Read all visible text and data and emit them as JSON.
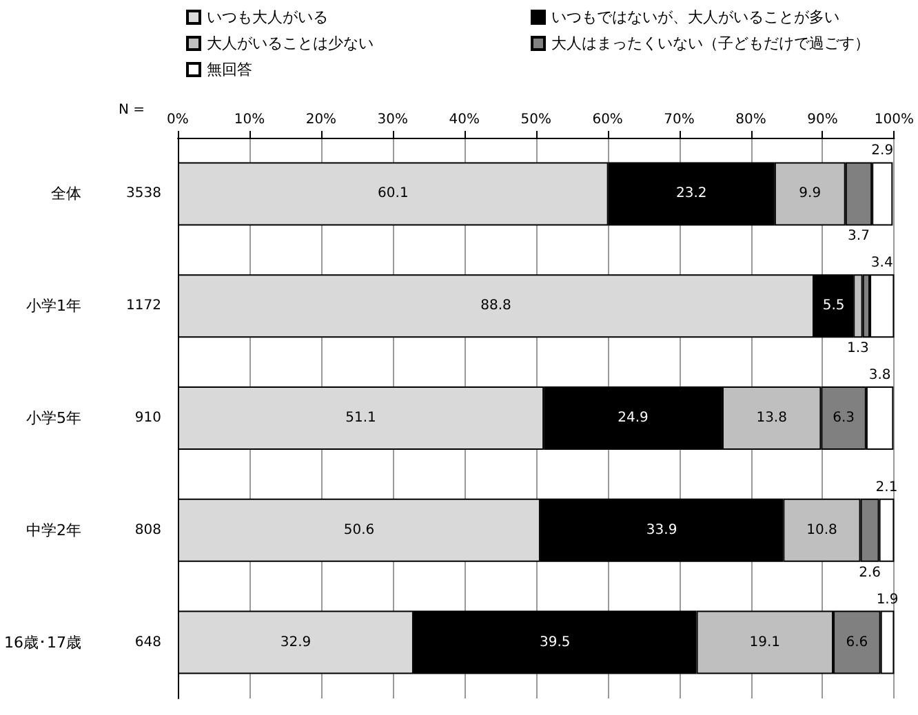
{
  "chart_data": {
    "type": "bar",
    "orientation": "horizontal",
    "stacked": true,
    "categories": [
      "全体",
      "小学1年",
      "小学5年",
      "中学2年",
      "16歳･17歳"
    ],
    "series": [
      {
        "name": "いつも大人がいる",
        "color": "#d9d9d9",
        "values": [
          60.1,
          88.8,
          51.1,
          50.6,
          32.9
        ]
      },
      {
        "name": "いつもではないが、大人がいることが多い",
        "color": "#000000",
        "values": [
          23.2,
          5.5,
          24.9,
          33.9,
          39.5
        ]
      },
      {
        "name": "大人がいることは少ない",
        "color": "#bfbfbf",
        "values": [
          9.9,
          1.3,
          13.8,
          10.8,
          19.1
        ]
      },
      {
        "name": "大人はまったくいない（子どもだけで過ごす）",
        "color": "#808080",
        "values": [
          3.7,
          1.0,
          6.3,
          2.6,
          6.6
        ],
        "value_labels": [
          "3.7",
          null,
          "6.3",
          "2.6",
          "6.6"
        ]
      },
      {
        "name": "無回答",
        "color": "#ffffff",
        "values": [
          2.9,
          3.4,
          3.8,
          2.1,
          1.9
        ]
      }
    ],
    "xlim": [
      0,
      100
    ],
    "xticks": [
      {
        "value": 0,
        "label": "0%"
      },
      {
        "value": 10,
        "label": "10%"
      },
      {
        "value": 20,
        "label": "20%"
      },
      {
        "value": 30,
        "label": "30%"
      },
      {
        "value": 40,
        "label": "40%"
      },
      {
        "value": 50,
        "label": "50%"
      },
      {
        "value": 60,
        "label": "60%"
      },
      {
        "value": 70,
        "label": "70%"
      },
      {
        "value": 80,
        "label": "80%"
      },
      {
        "value": 90,
        "label": "90%"
      },
      {
        "value": 100,
        "label": "100%"
      }
    ],
    "grid": "x",
    "legend": "top",
    "data_labels": true,
    "annotations": [
      "N =",
      "3538",
      "1172",
      "910",
      "808",
      "648"
    ]
  }
}
